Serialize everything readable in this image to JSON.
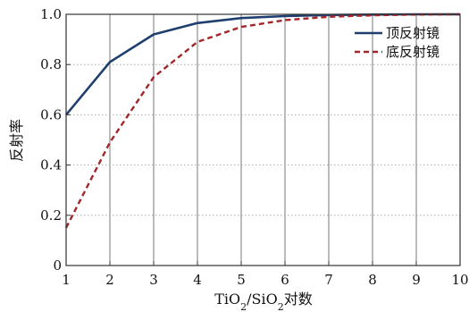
{
  "chart_data": {
    "type": "line",
    "title": "",
    "xlabel": "TiO2/SiO2对数",
    "xlabel_parts": {
      "a": "TiO",
      "sub1": "2",
      "b": "/SiO",
      "sub2": "2",
      "c": "对数"
    },
    "ylabel": "反射率",
    "x": [
      1,
      2,
      3,
      4,
      5,
      6,
      7,
      8,
      9,
      10
    ],
    "xlim": [
      1,
      10
    ],
    "ylim": [
      0,
      1.0
    ],
    "xticks": [
      "1",
      "2",
      "3",
      "4",
      "5",
      "6",
      "7",
      "8",
      "9",
      "10"
    ],
    "yticks": [
      "0",
      "0.2",
      "0.4",
      "0.6",
      "0.8",
      "1.0"
    ],
    "ytick_values": [
      0,
      0.2,
      0.4,
      0.6,
      0.8,
      1.0
    ],
    "grid_x": true,
    "grid_y": "dotted",
    "legend_position": "top-right",
    "series": [
      {
        "name": "顶反射镜",
        "style": "solid",
        "color": "#1f3f6e",
        "values": [
          0.6,
          0.81,
          0.92,
          0.965,
          0.985,
          0.993,
          0.997,
          0.999,
          1.0,
          1.0
        ]
      },
      {
        "name": "底反射镜",
        "style": "dashed",
        "color": "#a3262a",
        "values": [
          0.15,
          0.49,
          0.75,
          0.89,
          0.95,
          0.977,
          0.99,
          0.996,
          0.999,
          1.0
        ]
      }
    ]
  }
}
